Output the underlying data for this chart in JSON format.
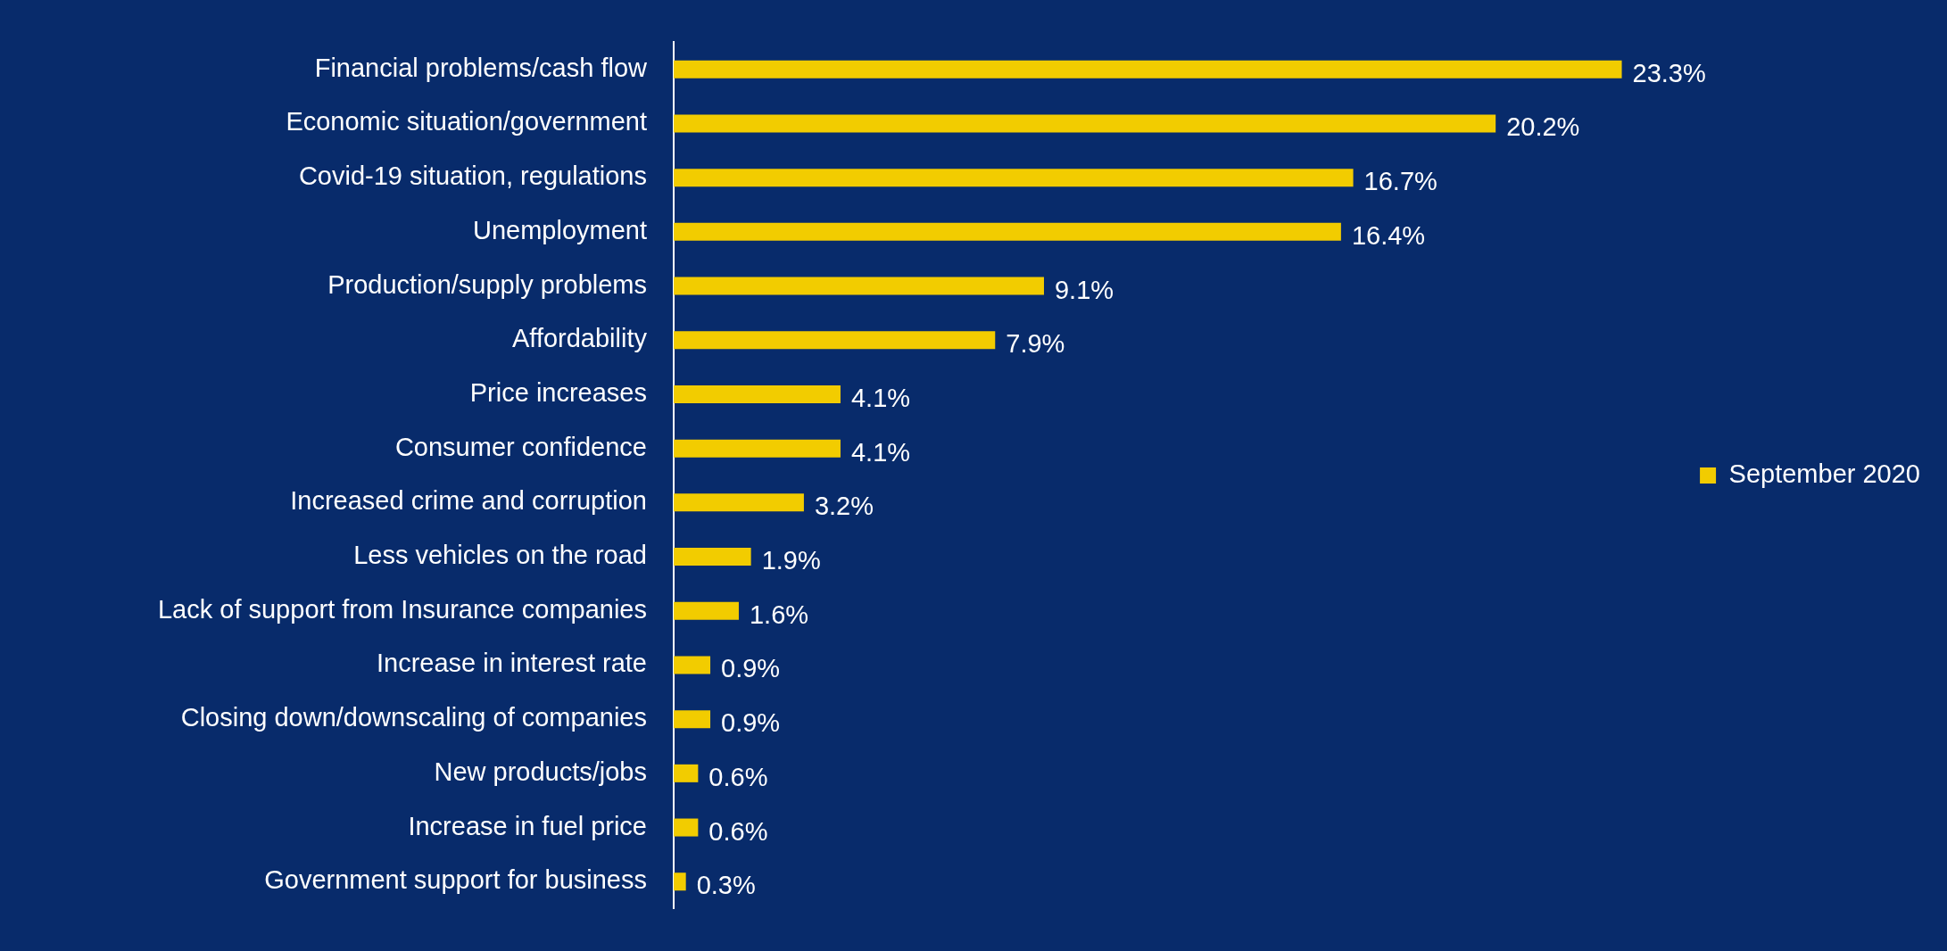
{
  "chart_data": {
    "type": "bar",
    "orientation": "horizontal",
    "categories": [
      "Financial problems/cash flow",
      "Economic situation/government",
      "Covid-19 situation, regulations",
      "Unemployment",
      "Production/supply problems",
      "Affordability",
      "Price increases",
      "Consumer confidence",
      "Increased crime and corruption",
      "Less vehicles on the road",
      "Lack of support from Insurance companies",
      "Increase in interest rate",
      "Closing down/downscaling of companies",
      "New products/jobs",
      "Increase in fuel price",
      "Government support for business"
    ],
    "series": [
      {
        "name": "September 2020",
        "color": "#f2cc00",
        "values": [
          23.3,
          20.2,
          16.7,
          16.4,
          9.1,
          7.9,
          4.1,
          4.1,
          3.2,
          1.9,
          1.6,
          0.9,
          0.9,
          0.6,
          0.6,
          0.3
        ],
        "value_labels": [
          "23.3%",
          "20.2%",
          "16.7%",
          "16.4%",
          "9.1%",
          "7.9%",
          "4.1%",
          "4.1%",
          "3.2%",
          "1.9%",
          "1.6%",
          "0.9%",
          "0.9%",
          "0.6%",
          "0.6%",
          "0.3%"
        ]
      }
    ],
    "legend": "right",
    "tick_labels": "y"
  }
}
